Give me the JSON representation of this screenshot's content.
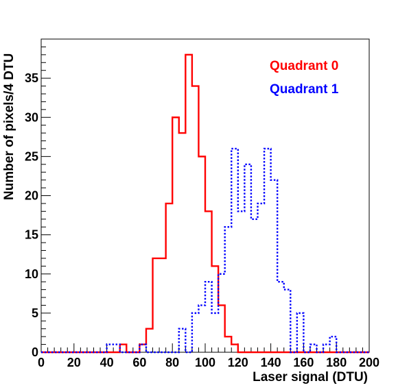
{
  "chart_data": {
    "type": "step-histogram",
    "xlabel": "Laser signal (DTU)",
    "ylabel": "Number of pixels/4 DTU",
    "xlim": [
      0,
      200
    ],
    "ylim": [
      0,
      40
    ],
    "bin_width": 4,
    "x_ticks": [
      0,
      20,
      40,
      60,
      80,
      100,
      120,
      140,
      160,
      180,
      200
    ],
    "y_ticks": [
      0,
      5,
      10,
      15,
      20,
      25,
      30,
      35
    ],
    "grid": false,
    "legend_placement": "top-right",
    "series": [
      {
        "name": "Quadrant 0",
        "color": "#ff0000",
        "line_style": "solid",
        "bin_edges": [
          0,
          4,
          8,
          12,
          16,
          20,
          24,
          28,
          32,
          36,
          40,
          44,
          48,
          52,
          56,
          60,
          64,
          68,
          72,
          76,
          80,
          84,
          88,
          92,
          96,
          100,
          104,
          108,
          112,
          116,
          120,
          124,
          128,
          132,
          136,
          140,
          144,
          148,
          152,
          156,
          160,
          164,
          168,
          172,
          176,
          180,
          184,
          188,
          192,
          196,
          200
        ],
        "counts": [
          0,
          0,
          0,
          0,
          0,
          0,
          0,
          0,
          0,
          0,
          0,
          0,
          1,
          0,
          0,
          1,
          3,
          12,
          12,
          19,
          30,
          28,
          38,
          34,
          25,
          18,
          11,
          6,
          2,
          1,
          0,
          0,
          0,
          0,
          0,
          0,
          0,
          0,
          0,
          0,
          0,
          0,
          0,
          0,
          0,
          0,
          0,
          0,
          0,
          0
        ]
      },
      {
        "name": "Quadrant 1",
        "color": "#0000ff",
        "line_style": "dotted",
        "bin_edges": [
          0,
          4,
          8,
          12,
          16,
          20,
          24,
          28,
          32,
          36,
          40,
          44,
          48,
          52,
          56,
          60,
          64,
          68,
          72,
          76,
          80,
          84,
          88,
          92,
          96,
          100,
          104,
          108,
          112,
          116,
          120,
          124,
          128,
          132,
          136,
          140,
          144,
          148,
          152,
          156,
          160,
          164,
          168,
          172,
          176,
          180,
          184,
          188,
          192,
          196,
          200
        ],
        "counts": [
          0,
          0,
          0,
          0,
          0,
          0,
          0,
          0,
          0,
          0,
          1,
          1,
          0,
          0,
          0,
          1,
          0,
          0,
          0,
          0,
          0,
          3,
          0,
          5,
          6,
          9,
          5,
          10,
          16,
          26,
          18,
          24,
          17,
          19,
          26,
          22,
          9,
          8,
          0,
          5,
          0,
          1,
          0,
          1,
          2,
          0,
          0,
          0,
          0,
          0
        ]
      }
    ]
  }
}
